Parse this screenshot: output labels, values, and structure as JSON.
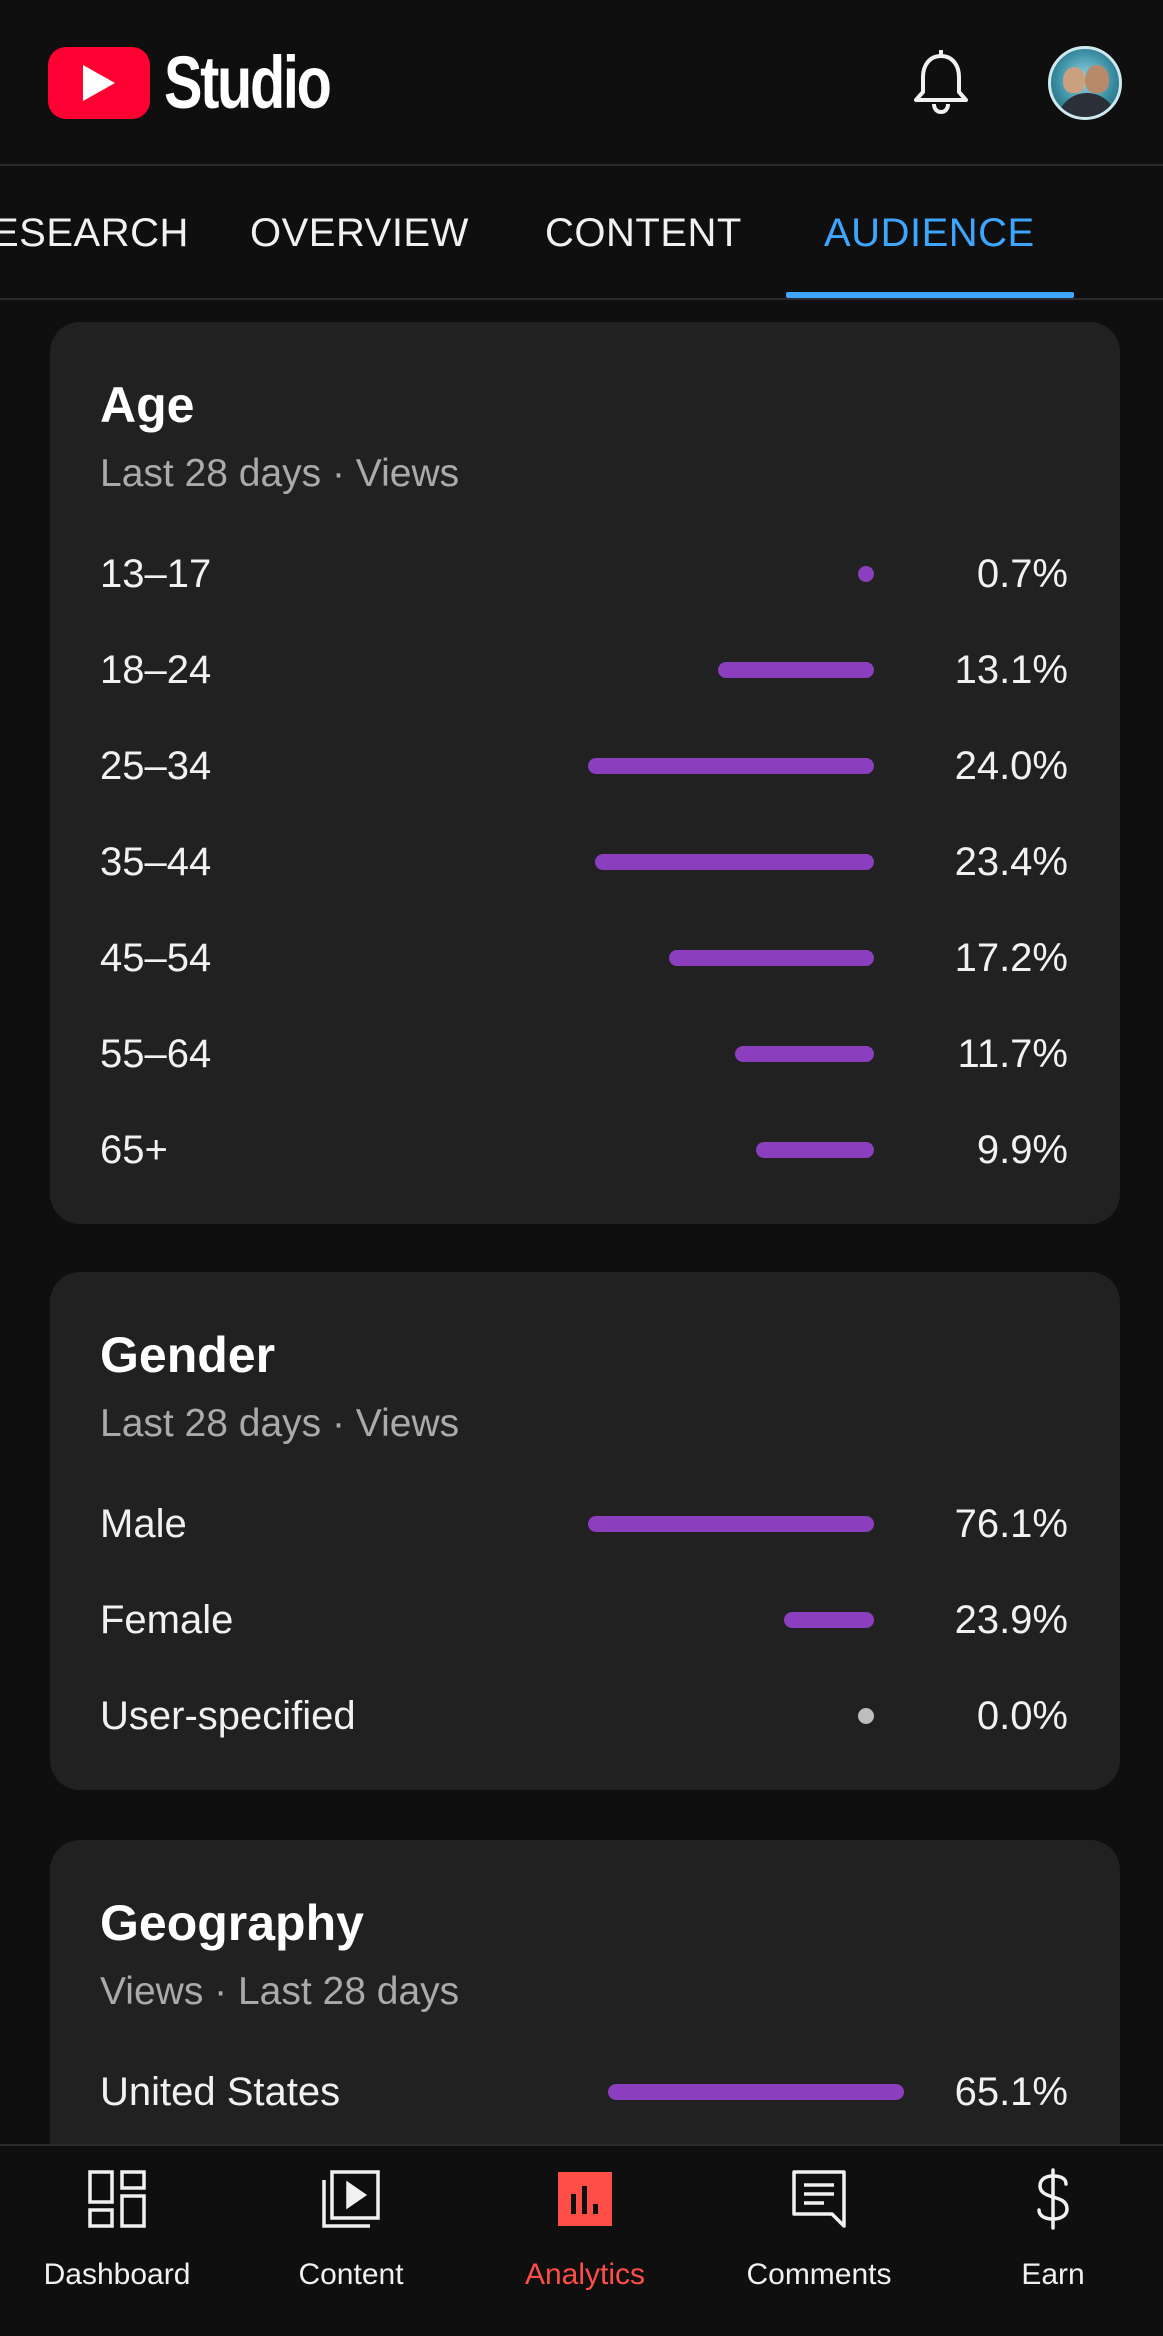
{
  "header": {
    "brand": "Studio",
    "icons": [
      "youtube-logo-icon",
      "bell-icon",
      "avatar"
    ]
  },
  "tabs": [
    {
      "label": "ESEARCH",
      "active": false
    },
    {
      "label": "OVERVIEW",
      "active": false
    },
    {
      "label": "CONTENT",
      "active": false
    },
    {
      "label": "AUDIENCE",
      "active": true
    }
  ],
  "colors": {
    "accent_blue": "#3ea6ff",
    "bar_purple": "#8b3fbf",
    "active_red": "#ff4e45",
    "card_bg": "#212121",
    "page_bg": "#0f0f0f"
  },
  "age": {
    "title": "Age",
    "subtitle": "Last 28 days · Views",
    "rows": [
      {
        "label": "13–17",
        "value": "0.7%",
        "percent": 0.7
      },
      {
        "label": "18–24",
        "value": "13.1%",
        "percent": 13.1
      },
      {
        "label": "25–34",
        "value": "24.0%",
        "percent": 24.0
      },
      {
        "label": "35–44",
        "value": "23.4%",
        "percent": 23.4
      },
      {
        "label": "45–54",
        "value": "17.2%",
        "percent": 17.2
      },
      {
        "label": "55–64",
        "value": "11.7%",
        "percent": 11.7
      },
      {
        "label": "65+",
        "value": "9.9%",
        "percent": 9.9
      }
    ]
  },
  "gender": {
    "title": "Gender",
    "subtitle": "Last 28 days · Views",
    "rows": [
      {
        "label": "Male",
        "value": "76.1%",
        "percent": 76.1
      },
      {
        "label": "Female",
        "value": "23.9%",
        "percent": 23.9
      },
      {
        "label": "User-specified",
        "value": "0.0%",
        "percent": 0.0
      }
    ]
  },
  "geography": {
    "title": "Geography",
    "subtitle": "Views · Last 28 days",
    "rows": [
      {
        "label": "United States",
        "value": "65.1%",
        "percent": 65.1
      }
    ]
  },
  "bottom_nav": [
    {
      "label": "Dashboard",
      "icon": "dashboard-icon",
      "active": false
    },
    {
      "label": "Content",
      "icon": "content-icon",
      "active": false
    },
    {
      "label": "Analytics",
      "icon": "analytics-icon",
      "active": true
    },
    {
      "label": "Comments",
      "icon": "comments-icon",
      "active": false
    },
    {
      "label": "Earn",
      "icon": "dollar-icon",
      "active": false
    }
  ]
}
